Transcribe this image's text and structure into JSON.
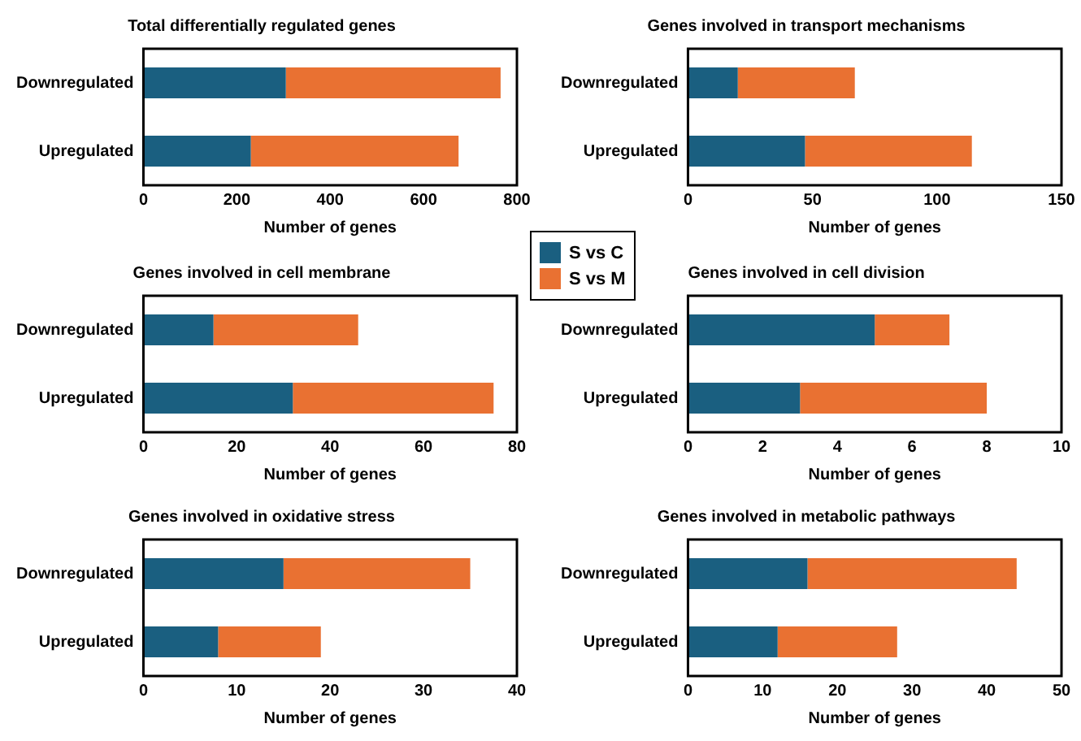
{
  "chart_data": [
    {
      "type": "bar",
      "title": "Total differentially regulated genes",
      "xlabel": "Number of genes",
      "categories": [
        "Downregulated",
        "Upregulated"
      ],
      "orientation": "horizontal",
      "stacked": true,
      "xlim": [
        0,
        800
      ],
      "xticks": [
        0,
        200,
        400,
        600,
        800
      ],
      "legend": "right",
      "grid": false,
      "series": [
        {
          "name": "S vs C",
          "color": "#1a5f80",
          "values": [
            305,
            230
          ]
        },
        {
          "name": "S vs M",
          "color": "#e97132",
          "values": [
            460,
            445
          ]
        }
      ]
    },
    {
      "type": "bar",
      "title": "Genes involved in transport mechanisms",
      "xlabel": "Number of genes",
      "categories": [
        "Downregulated",
        "Upregulated"
      ],
      "orientation": "horizontal",
      "stacked": true,
      "xlim": [
        0,
        150
      ],
      "xticks": [
        0,
        50,
        100,
        150
      ],
      "grid": false,
      "series": [
        {
          "color": "#1a5f80",
          "values": [
            20,
            47
          ]
        },
        {
          "color": "#e97132",
          "values": [
            47,
            67
          ]
        }
      ]
    },
    {
      "type": "bar",
      "title": "Genes involved in cell membrane",
      "xlabel": "Number of genes",
      "categories": [
        "Downregulated",
        "Upregulated"
      ],
      "orientation": "horizontal",
      "stacked": true,
      "xlim": [
        0,
        80
      ],
      "xticks": [
        0,
        20,
        40,
        60,
        80
      ],
      "grid": false,
      "series": [
        {
          "color": "#1a5f80",
          "values": [
            15,
            32
          ]
        },
        {
          "color": "#e97132",
          "values": [
            31,
            43
          ]
        }
      ]
    },
    {
      "type": "bar",
      "title": "Genes involved in cell division",
      "xlabel": "Number of genes",
      "categories": [
        "Downregulated",
        "Upregulated"
      ],
      "orientation": "horizontal",
      "stacked": true,
      "xlim": [
        0,
        10
      ],
      "xticks": [
        0,
        2,
        4,
        6,
        8,
        10
      ],
      "grid": false,
      "series": [
        {
          "color": "#1a5f80",
          "values": [
            5,
            3
          ]
        },
        {
          "color": "#e97132",
          "values": [
            2,
            5
          ]
        }
      ]
    },
    {
      "type": "bar",
      "title": "Genes involved in oxidative stress",
      "xlabel": "Number of genes",
      "categories": [
        "Downregulated",
        "Upregulated"
      ],
      "orientation": "horizontal",
      "stacked": true,
      "xlim": [
        0,
        40
      ],
      "xticks": [
        0,
        10,
        20,
        30,
        40
      ],
      "grid": false,
      "series": [
        {
          "color": "#1a5f80",
          "values": [
            15,
            8
          ]
        },
        {
          "color": "#e97132",
          "values": [
            20,
            11
          ]
        }
      ]
    },
    {
      "type": "bar",
      "title": "Genes involved in metabolic pathways",
      "xlabel": "Number of genes",
      "categories": [
        "Downregulated",
        "Upregulated"
      ],
      "orientation": "horizontal",
      "stacked": true,
      "xlim": [
        0,
        50
      ],
      "xticks": [
        0,
        10,
        20,
        30,
        40,
        50
      ],
      "grid": false,
      "series": [
        {
          "color": "#1a5f80",
          "values": [
            16,
            12
          ]
        },
        {
          "color": "#e97132",
          "values": [
            28,
            16
          ]
        }
      ]
    }
  ]
}
